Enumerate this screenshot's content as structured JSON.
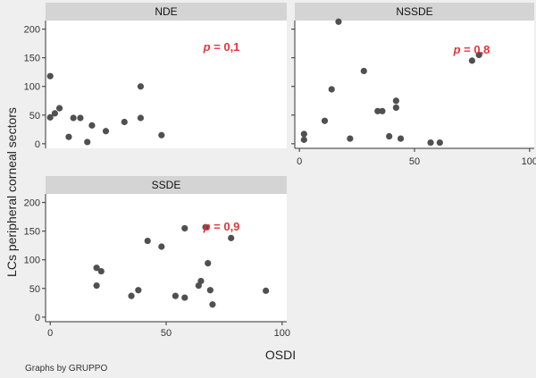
{
  "chart_data": {
    "type": "scatter",
    "xlabel": "OSDI",
    "ylabel": "LCs peripheral corneal sectors",
    "note": "Graphs by GRUPPO",
    "x_ticks": [
      0,
      50,
      100
    ],
    "y_ticks": [
      0,
      50,
      100,
      150,
      200
    ],
    "xlim": [
      -2,
      102
    ],
    "ylim": [
      -8,
      215
    ],
    "panels": [
      {
        "title": "NDE",
        "p_label": "p",
        "p_value": "= 0,1",
        "points": [
          {
            "x": 0,
            "y": 46
          },
          {
            "x": 0,
            "y": 118
          },
          {
            "x": 2,
            "y": 53
          },
          {
            "x": 4,
            "y": 62
          },
          {
            "x": 8,
            "y": 12
          },
          {
            "x": 10,
            "y": 45
          },
          {
            "x": 13,
            "y": 45
          },
          {
            "x": 16,
            "y": 3
          },
          {
            "x": 18,
            "y": 32
          },
          {
            "x": 24,
            "y": 22
          },
          {
            "x": 32,
            "y": 38
          },
          {
            "x": 39,
            "y": 45
          },
          {
            "x": 39,
            "y": 100
          },
          {
            "x": 48,
            "y": 15
          }
        ]
      },
      {
        "title": "NSSDE",
        "p_label": "p",
        "p_value": "= 0,8",
        "points": [
          {
            "x": 2,
            "y": 7
          },
          {
            "x": 2,
            "y": 17
          },
          {
            "x": 11,
            "y": 40
          },
          {
            "x": 14,
            "y": 95
          },
          {
            "x": 17,
            "y": 213
          },
          {
            "x": 22,
            "y": 9
          },
          {
            "x": 28,
            "y": 127
          },
          {
            "x": 34,
            "y": 57
          },
          {
            "x": 36,
            "y": 57
          },
          {
            "x": 39,
            "y": 13
          },
          {
            "x": 42,
            "y": 75
          },
          {
            "x": 42,
            "y": 63
          },
          {
            "x": 44,
            "y": 9
          },
          {
            "x": 57,
            "y": 2
          },
          {
            "x": 61,
            "y": 2
          },
          {
            "x": 75,
            "y": 145
          },
          {
            "x": 78,
            "y": 155
          }
        ]
      },
      {
        "title": "SSDE",
        "p_label": "p",
        "p_value": "= 0,9",
        "points": [
          {
            "x": 20,
            "y": 86
          },
          {
            "x": 20,
            "y": 55
          },
          {
            "x": 22,
            "y": 80
          },
          {
            "x": 35,
            "y": 37
          },
          {
            "x": 38,
            "y": 47
          },
          {
            "x": 42,
            "y": 133
          },
          {
            "x": 48,
            "y": 123
          },
          {
            "x": 54,
            "y": 37
          },
          {
            "x": 58,
            "y": 34
          },
          {
            "x": 58,
            "y": 155
          },
          {
            "x": 64,
            "y": 55
          },
          {
            "x": 65,
            "y": 63
          },
          {
            "x": 67,
            "y": 157
          },
          {
            "x": 68,
            "y": 94
          },
          {
            "x": 69,
            "y": 47
          },
          {
            "x": 70,
            "y": 22
          },
          {
            "x": 78,
            "y": 138
          },
          {
            "x": 93,
            "y": 46
          }
        ]
      }
    ]
  }
}
